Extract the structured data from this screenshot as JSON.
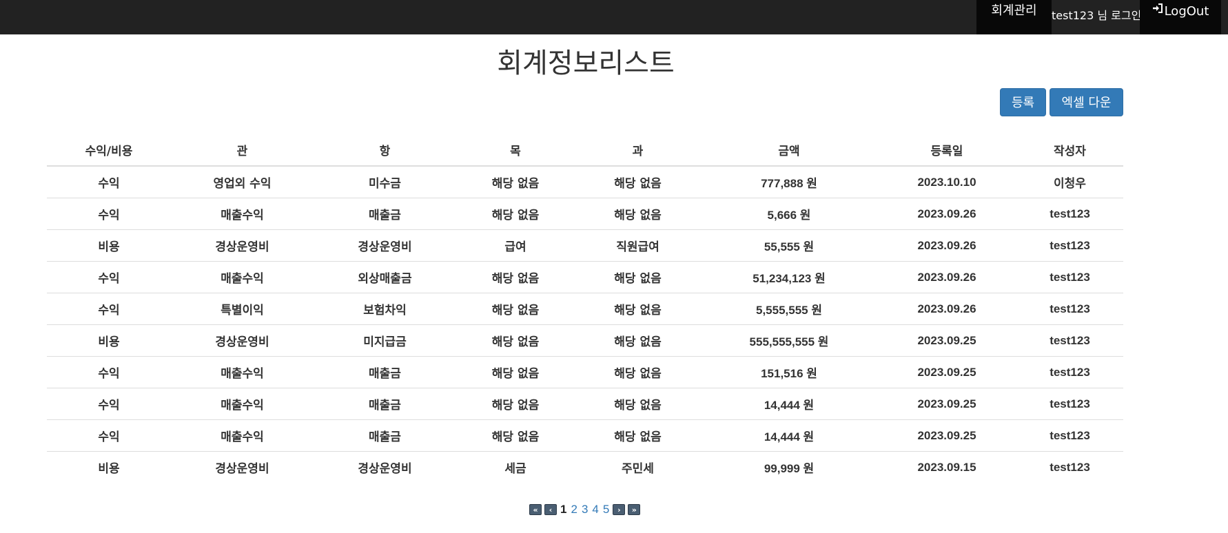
{
  "nav": {
    "menu": "회계관리",
    "user_status": "test123 님 로그인",
    "logout": "LogOut"
  },
  "page_title": "회계정보리스트",
  "actions": {
    "register": "등록",
    "excel_download": "엑셀 다운"
  },
  "table": {
    "headers": [
      "수익/비용",
      "관",
      "항",
      "목",
      "과",
      "금액",
      "등록일",
      "작성자"
    ],
    "rows": [
      [
        "수익",
        "영업외 수익",
        "미수금",
        "해당 없음",
        "해당 없음",
        "777,888 원",
        "2023.10.10",
        "이청우"
      ],
      [
        "수익",
        "매출수익",
        "매출금",
        "해당 없음",
        "해당 없음",
        "5,666 원",
        "2023.09.26",
        "test123"
      ],
      [
        "비용",
        "경상운영비",
        "경상운영비",
        "급여",
        "직원급여",
        "55,555 원",
        "2023.09.26",
        "test123"
      ],
      [
        "수익",
        "매출수익",
        "외상매출금",
        "해당 없음",
        "해당 없음",
        "51,234,123 원",
        "2023.09.26",
        "test123"
      ],
      [
        "수익",
        "특별이익",
        "보험차익",
        "해당 없음",
        "해당 없음",
        "5,555,555 원",
        "2023.09.26",
        "test123"
      ],
      [
        "비용",
        "경상운영비",
        "미지급금",
        "해당 없음",
        "해당 없음",
        "555,555,555 원",
        "2023.09.25",
        "test123"
      ],
      [
        "수익",
        "매출수익",
        "매출금",
        "해당 없음",
        "해당 없음",
        "151,516 원",
        "2023.09.25",
        "test123"
      ],
      [
        "수익",
        "매출수익",
        "매출금",
        "해당 없음",
        "해당 없음",
        "14,444 원",
        "2023.09.25",
        "test123"
      ],
      [
        "수익",
        "매출수익",
        "매출금",
        "해당 없음",
        "해당 없음",
        "14,444 원",
        "2023.09.25",
        "test123"
      ],
      [
        "비용",
        "경상운영비",
        "경상운영비",
        "세금",
        "주민세",
        "99,999 원",
        "2023.09.15",
        "test123"
      ]
    ]
  },
  "pagination": {
    "first": "«",
    "prev": "‹",
    "pages": [
      "1",
      "2",
      "3",
      "4",
      "5"
    ],
    "current_page": "1",
    "next": "›",
    "last": "»"
  }
}
